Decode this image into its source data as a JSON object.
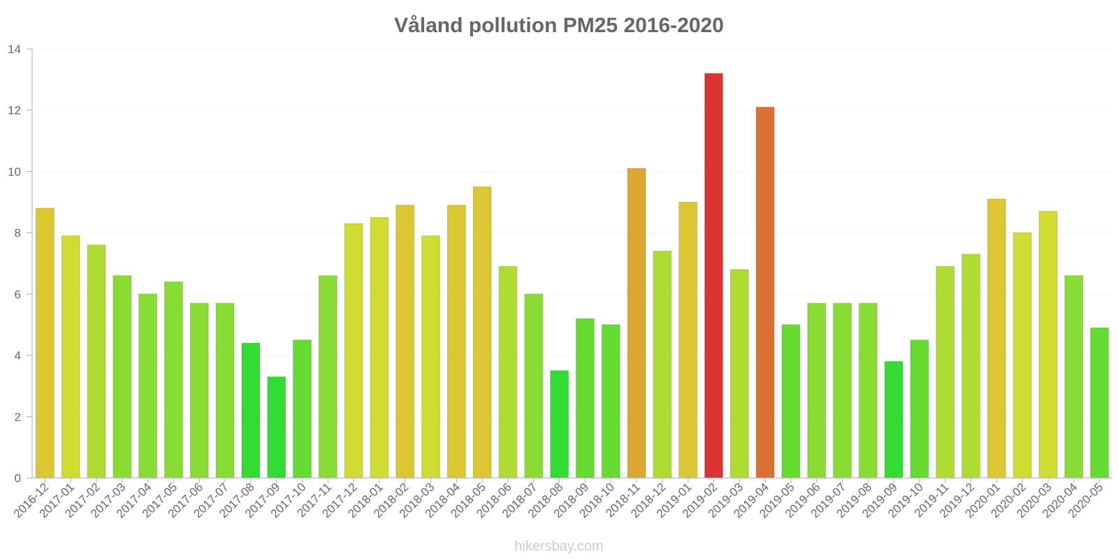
{
  "chart_data": {
    "type": "bar",
    "title": "Våland pollution PM25 2016-2020",
    "xlabel": "",
    "ylabel": "",
    "ylim": [
      0,
      14
    ],
    "yticks": [
      0,
      2,
      4,
      6,
      8,
      10,
      12,
      14
    ],
    "grid": true,
    "categories": [
      "2016-12",
      "2017-01",
      "2017-02",
      "2017-03",
      "2017-04",
      "2017-05",
      "2017-06",
      "2017-07",
      "2017-08",
      "2017-09",
      "2017-10",
      "2017-11",
      "2017-12",
      "2018-01",
      "2018-02",
      "2018-03",
      "2018-04",
      "2018-05",
      "2018-06",
      "2018-07",
      "2018-08",
      "2018-09",
      "2018-10",
      "2018-11",
      "2018-12",
      "2019-01",
      "2019-02",
      "2019-03",
      "2019-04",
      "2019-05",
      "2019-06",
      "2019-07",
      "2019-08",
      "2019-09",
      "2019-10",
      "2019-11",
      "2019-12",
      "2020-01",
      "2020-02",
      "2020-03",
      "2020-04",
      "2020-05"
    ],
    "values": [
      8.8,
      7.9,
      7.6,
      6.6,
      6.0,
      6.4,
      5.7,
      5.7,
      4.4,
      3.3,
      4.5,
      6.6,
      8.3,
      8.5,
      8.9,
      7.9,
      8.9,
      9.5,
      6.9,
      6.0,
      3.5,
      5.2,
      5.0,
      10.1,
      7.4,
      9.0,
      13.2,
      6.8,
      12.1,
      5.0,
      5.7,
      5.7,
      5.7,
      3.8,
      4.5,
      6.9,
      7.3,
      9.1,
      8.0,
      8.7,
      6.6,
      4.9
    ],
    "colors": [
      "#dcc733",
      "#d1dc33",
      "#aedc33",
      "#88dc33",
      "#88dc33",
      "#88dc33",
      "#88dc33",
      "#88dc33",
      "#33dc33",
      "#33dc33",
      "#66dc33",
      "#88dc33",
      "#d1dc33",
      "#d1dc33",
      "#dcc733",
      "#d1dc33",
      "#dcc733",
      "#dcc733",
      "#aedc33",
      "#88dc33",
      "#33dc33",
      "#66dc33",
      "#66dc33",
      "#dca633",
      "#aedc33",
      "#dcc733",
      "#dc3333",
      "#aedc33",
      "#dc7033",
      "#66dc33",
      "#88dc33",
      "#88dc33",
      "#88dc33",
      "#33dc33",
      "#66dc33",
      "#aedc33",
      "#aedc33",
      "#dcc733",
      "#d1dc33",
      "#d1dc33",
      "#88dc33",
      "#66dc33"
    ]
  },
  "watermark": "hikersbay.com"
}
